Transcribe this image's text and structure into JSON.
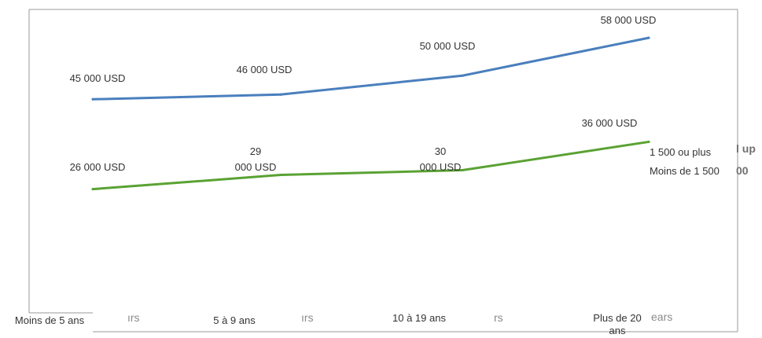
{
  "chart_data": {
    "type": "line",
    "categories": [
      "Moins de 5 ans",
      "5 à 9 ans",
      "10 à 19 ans",
      "Plus de 20 ans"
    ],
    "series": [
      {
        "name": "1 500 ou plus",
        "color": "#4a7fbd",
        "values": [
          45000,
          46000,
          50000,
          58000
        ],
        "labels": [
          "45 000 USD",
          "46 000 USD",
          "50 000 USD",
          "58 000 USD"
        ]
      },
      {
        "name": "Moins de 1 500",
        "color": "#5aa233",
        "values": [
          26000,
          29000,
          30000,
          36000
        ],
        "labels": [
          "26 000 USD",
          "29 000 USD",
          "30 000 USD",
          "36 000 USD"
        ]
      }
    ],
    "ylim": [
      0,
      64000
    ],
    "grid": false,
    "legend_position": "right",
    "ghost_text": [
      "ırs",
      "ırs",
      "rs",
      "ears",
      "l up",
      "00"
    ]
  }
}
